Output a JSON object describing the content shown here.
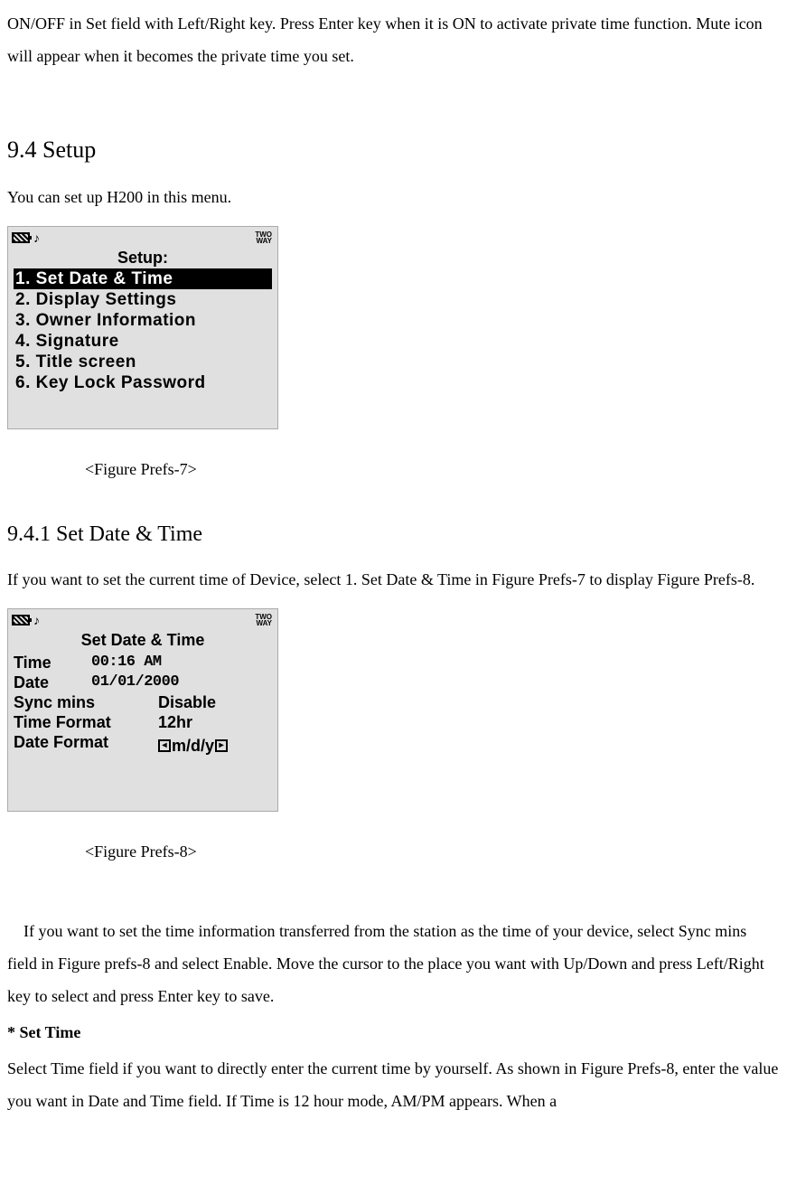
{
  "intro": {
    "p1": "ON/OFF in Set field with Left/Right key. Press Enter key when it is ON to activate private time function. Mute icon will appear when it becomes the private time you set."
  },
  "section_setup": {
    "heading": "9.4 Setup",
    "desc": "You can set up H200 in this menu."
  },
  "screen1": {
    "status_twoway_l1": "TWO",
    "status_twoway_l2": "WAY",
    "sound_glyph": "♪",
    "title": "Setup:",
    "items": [
      "1. Set Date & Time",
      "2. Display Settings",
      "3. Owner Information",
      "4. Signature",
      "5. Title screen",
      "6. Key Lock Password"
    ]
  },
  "caption1": "<Figure Prefs-7>",
  "subsection": {
    "heading": "9.4.1 Set Date & Time",
    "desc": "If you want to set the current time of Device, select 1. Set Date & Time in Figure Prefs-7 to display Figure Prefs-8."
  },
  "screen2": {
    "status_twoway_l1": "TWO",
    "status_twoway_l2": "WAY",
    "sound_glyph": "♪",
    "title": "Set Date & Time",
    "rows": {
      "time_label": "Time",
      "time_value": "00:16 AM",
      "date_label": "Date",
      "date_value": "01/01/2000",
      "sync_label": "Sync mins",
      "sync_value": "Disable",
      "timefmt_label": "Time Format",
      "timefmt_value": "12hr",
      "datefmt_label": "Date Format",
      "datefmt_value": "m/d/y"
    }
  },
  "caption2": "<Figure Prefs-8>",
  "body": {
    "p_sync": "If you want to set the time information transferred from the station as the time of your device, select Sync mins field in Figure prefs-8 and select Enable. Move the cursor to the place you want with Up/Down and press Left/Right key to select and press Enter key to save.",
    "set_time_heading": "* Set Time",
    "p_settime": "Select Time field if you want to directly enter the current time by yourself. As shown in Figure Prefs-8, enter the value you want in Date and Time field. If Time is 12 hour mode, AM/PM appears. When a"
  }
}
